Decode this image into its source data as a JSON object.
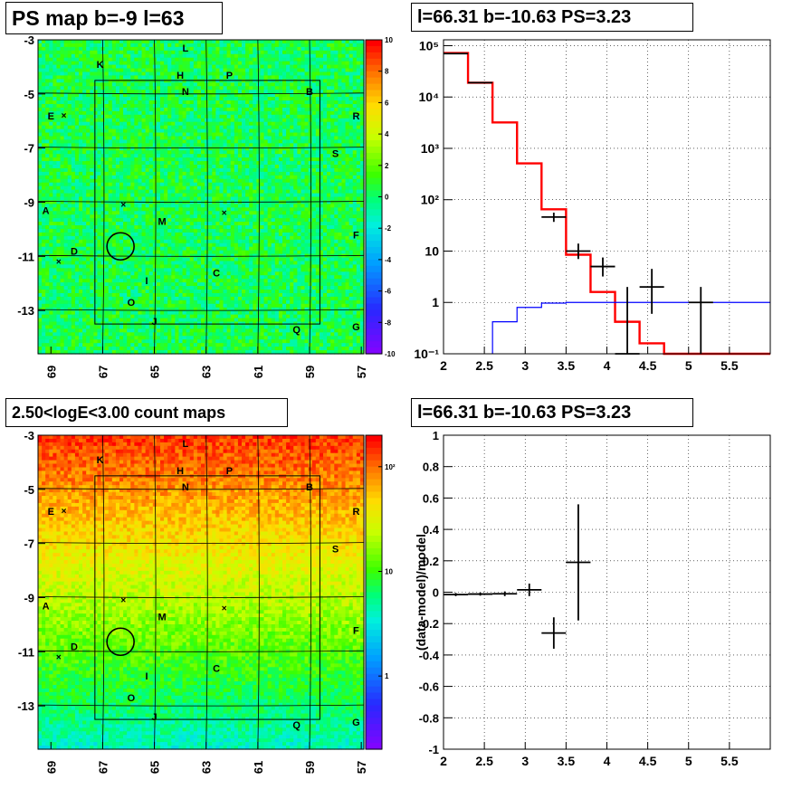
{
  "panels": {
    "ps_map": {
      "title": "PS map b=-9 l=63",
      "x_ticks": [
        "69",
        "67",
        "65",
        "63",
        "61",
        "59",
        "57"
      ],
      "y_ticks": [
        "-3",
        "-5",
        "-7",
        "-9",
        "-11",
        "-13"
      ],
      "colorbar_ticks": [
        "10",
        "8",
        "6",
        "4",
        "2",
        "0",
        "-2",
        "-4",
        "-6",
        "-8",
        "-10"
      ]
    },
    "count_map": {
      "title": "2.50<logE<3.00 count maps",
      "x_ticks": [
        "69",
        "67",
        "65",
        "63",
        "61",
        "59",
        "57"
      ],
      "y_ticks": [
        "-3",
        "-5",
        "-7",
        "-9",
        "-11",
        "-13"
      ],
      "colorbar_ticks": [
        "10²",
        "10",
        "1"
      ]
    },
    "spectrum": {
      "title": "l=66.31 b=-10.63 PS=3.23"
    },
    "residual": {
      "title": "l=66.31 b=-10.63 PS=3.23",
      "ylabel": "(data-model)/model"
    }
  },
  "source_labels": [
    {
      "name": "L",
      "l": 63.8,
      "b": -3.3
    },
    {
      "name": "K",
      "l": 67.1,
      "b": -3.9
    },
    {
      "name": "H",
      "l": 64.0,
      "b": -4.3
    },
    {
      "name": "P",
      "l": 62.1,
      "b": -4.3
    },
    {
      "name": "N",
      "l": 63.8,
      "b": -4.9
    },
    {
      "name": "B",
      "l": 59.0,
      "b": -4.9
    },
    {
      "name": "E",
      "l": 69.0,
      "b": -5.8
    },
    {
      "name": "R",
      "l": 57.2,
      "b": -5.8
    },
    {
      "name": "S",
      "l": 58.0,
      "b": -7.2
    },
    {
      "name": "M",
      "l": 64.7,
      "b": -9.7
    },
    {
      "name": "A",
      "l": 69.2,
      "b": -9.3
    },
    {
      "name": "F",
      "l": 57.2,
      "b": -10.2
    },
    {
      "name": "D",
      "l": 68.1,
      "b": -10.8
    },
    {
      "name": "C",
      "l": 62.6,
      "b": -11.6
    },
    {
      "name": "I",
      "l": 65.3,
      "b": -11.9
    },
    {
      "name": "O",
      "l": 65.9,
      "b": -12.7
    },
    {
      "name": "J",
      "l": 65.0,
      "b": -13.4
    },
    {
      "name": "Q",
      "l": 59.5,
      "b": -13.7
    },
    {
      "name": "G",
      "l": 57.2,
      "b": -13.6
    }
  ],
  "crosses": [
    {
      "l": 68.5,
      "b": -5.8
    },
    {
      "l": 66.2,
      "b": -9.1
    },
    {
      "l": 62.3,
      "b": -9.4
    },
    {
      "l": 68.7,
      "b": -11.2
    }
  ],
  "highlight_circle": {
    "l": 66.31,
    "b": -10.63
  },
  "chart_data": [
    {
      "type": "heatmap",
      "title": "PS map b=-9 l=63",
      "xlim": [
        69.5,
        56.9
      ],
      "ylim": [
        -14.6,
        -3.0
      ],
      "zlim": [
        -10,
        10
      ],
      "colorbar": "rainbow",
      "dominant_value": 0.5
    },
    {
      "type": "heatmap",
      "title": "2.50<logE<3.00 count maps",
      "xlim": [
        69.5,
        56.9
      ],
      "ylim": [
        -14.6,
        -3.0
      ],
      "zscale": "log",
      "zlim": [
        0.2,
        200
      ],
      "colorbar": "rainbow",
      "gradient": "counts decrease from top (~150) to bottom (~4)"
    },
    {
      "type": "line",
      "title": "l=66.31 b=-10.63 PS=3.23",
      "yscale": "log",
      "xlim": [
        2.0,
        6.0
      ],
      "ylim": [
        0.1,
        130000
      ],
      "x_ticks": [
        "2",
        "2.5",
        "3",
        "3.5",
        "4",
        "4.5",
        "5",
        "5.5"
      ],
      "y_ticks": [
        {
          "v": 0.1,
          "label": "10⁻¹"
        },
        {
          "v": 1,
          "label": "1"
        },
        {
          "v": 10,
          "label": "10"
        },
        {
          "v": 100,
          "label": "10²"
        },
        {
          "v": 1000,
          "label": "10³"
        },
        {
          "v": 10000,
          "label": "10⁴"
        },
        {
          "v": 100000,
          "label": "10⁵"
        }
      ],
      "series": [
        {
          "style": "step",
          "color": "#ff0000",
          "edges": [
            2.0,
            2.3,
            2.6,
            2.9,
            3.2,
            3.5,
            3.8,
            4.1,
            4.4,
            4.7,
            5.0,
            6.0
          ],
          "values": [
            72000,
            19000,
            3200,
            510,
            65,
            8.5,
            1.6,
            0.42,
            0.16,
            0.1,
            0.1
          ]
        },
        {
          "style": "step",
          "color": "#0000ff",
          "edges": [
            2.6,
            2.9,
            3.2,
            3.5,
            6.0
          ],
          "values": [
            0.42,
            0.8,
            0.97,
            1.0
          ]
        },
        {
          "style": "errorbar",
          "color": "#000000",
          "points": [
            {
              "x": 2.15,
              "xerr": 0.15,
              "y": 70000,
              "ylo": 68000,
              "yhi": 72000
            },
            {
              "x": 2.45,
              "xerr": 0.15,
              "y": 19000,
              "ylo": 18500,
              "yhi": 19500
            },
            {
              "x": 3.35,
              "xerr": 0.15,
              "y": 46,
              "ylo": 37,
              "yhi": 56
            },
            {
              "x": 3.65,
              "xerr": 0.15,
              "y": 10,
              "ylo": 7,
              "yhi": 14
            },
            {
              "x": 3.95,
              "xerr": 0.15,
              "y": 5,
              "ylo": 3.2,
              "yhi": 7.5
            },
            {
              "x": 4.25,
              "xerr": 0.15,
              "y": 0.1,
              "ylo": 0.1,
              "yhi": 2
            },
            {
              "x": 4.55,
              "xerr": 0.15,
              "y": 2,
              "ylo": 0.6,
              "yhi": 4.5
            },
            {
              "x": 5.15,
              "xerr": 0.15,
              "y": 1,
              "ylo": 0.1,
              "yhi": 2
            }
          ]
        }
      ]
    },
    {
      "type": "scatter",
      "title": "l=66.31 b=-10.63 PS=3.23",
      "ylabel": "(data-model)/model",
      "xlim": [
        2.0,
        6.0
      ],
      "ylim": [
        -1.0,
        1.0
      ],
      "x_ticks": [
        "2",
        "2.5",
        "3",
        "3.5",
        "4",
        "4.5",
        "5",
        "5.5"
      ],
      "y_ticks": [
        "1",
        "0.8",
        "0.6",
        "0.4",
        "0.2",
        "0",
        "-0.2",
        "-0.4",
        "-0.6",
        "-0.8",
        "-1"
      ],
      "points": [
        {
          "x": 2.15,
          "xerr": 0.15,
          "y": -0.015,
          "yerr": 0.01
        },
        {
          "x": 2.45,
          "xerr": 0.15,
          "y": -0.012,
          "yerr": 0.01
        },
        {
          "x": 2.75,
          "xerr": 0.15,
          "y": -0.01,
          "yerr": 0.015
        },
        {
          "x": 3.05,
          "xerr": 0.15,
          "y": 0.015,
          "yerr": 0.04
        },
        {
          "x": 3.35,
          "xerr": 0.15,
          "y": -0.26,
          "yerr": 0.1
        },
        {
          "x": 3.65,
          "xerr": 0.15,
          "y": 0.19,
          "yerr": 0.37
        }
      ]
    }
  ]
}
